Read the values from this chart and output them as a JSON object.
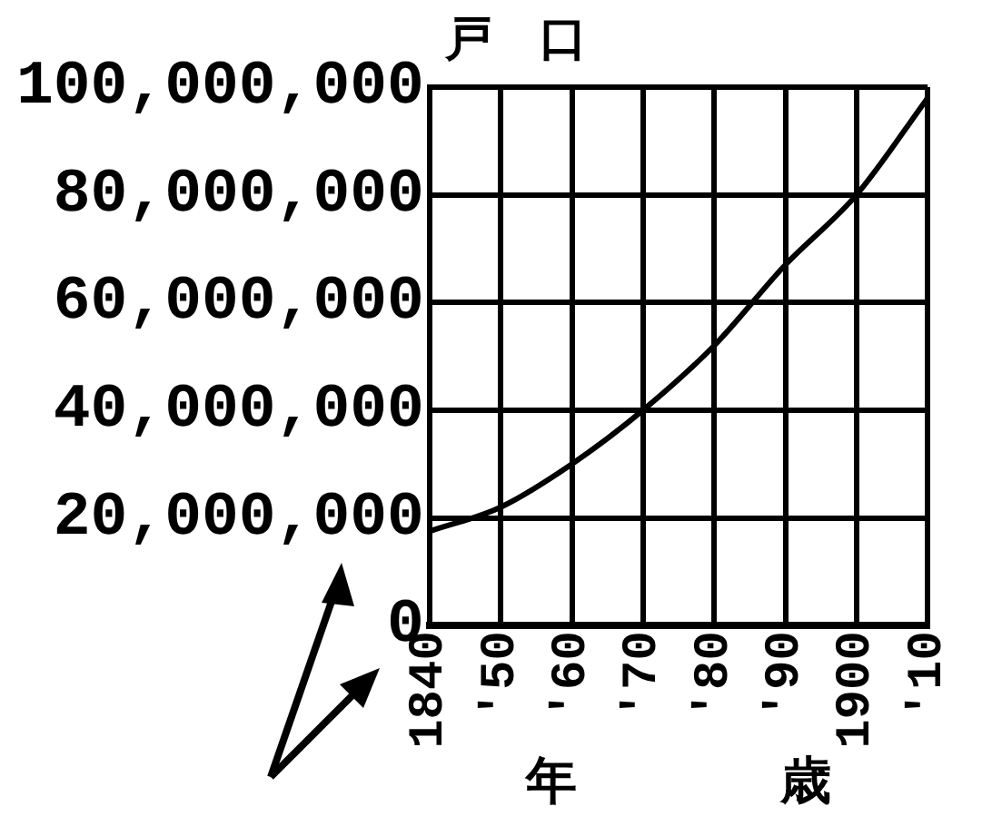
{
  "chart_data": {
    "type": "line",
    "xlabel": "年　　　　歳",
    "ylabel": "戸　口",
    "x": [
      1840,
      1850,
      1860,
      1870,
      1880,
      1890,
      1900,
      1910
    ],
    "series": [
      {
        "color": "#000000",
        "values": [
          17500000,
          22000000,
          30000000,
          40000000,
          52000000,
          67000000,
          80000000,
          98000000
        ]
      }
    ],
    "xlim": [
      1840,
      1910
    ],
    "xticks": [
      1840,
      {
        "value": 1850,
        "label": "'50"
      },
      {
        "value": 1860,
        "label": "'60"
      },
      {
        "value": 1870,
        "label": "'70"
      },
      {
        "value": 1880,
        "label": "'80"
      },
      {
        "value": 1890,
        "label": "'90"
      },
      1900,
      {
        "value": 1910,
        "label": "'10"
      }
    ],
    "ylim": [
      0,
      100000000
    ],
    "yticks": [
      0,
      {
        "value": 20000000,
        "label": "20,000,000"
      },
      {
        "value": 40000000,
        "label": "40,000,000"
      },
      {
        "value": 60000000,
        "label": "60,000,000"
      },
      {
        "value": 80000000,
        "label": "80,000,000"
      },
      {
        "value": 100000000,
        "label": "100,000,000"
      }
    ],
    "grid": true,
    "legend": false,
    "marker": "none",
    "line_style": "solid"
  }
}
